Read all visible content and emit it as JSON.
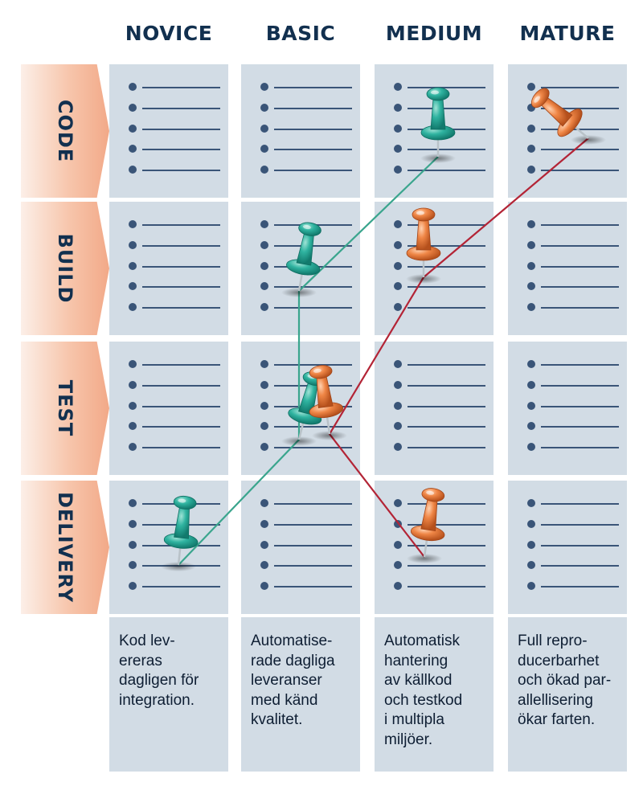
{
  "columns": [
    {
      "id": "novice",
      "label": "NOVICE",
      "description": [
        "Kod lev-",
        "ereras",
        "dagligen för",
        "integration."
      ]
    },
    {
      "id": "basic",
      "label": "BASIC",
      "description": [
        "Automatise-",
        "rade dagliga",
        "leveranser",
        "med känd",
        "kvalitet."
      ]
    },
    {
      "id": "medium",
      "label": "MEDIUM",
      "description": [
        "Automatisk",
        "hantering",
        "av källkod",
        "och testkod",
        "i multipla",
        "miljöer."
      ]
    },
    {
      "id": "mature",
      "label": "MATURE",
      "description": [
        "Full repro-",
        "ducerbarhet",
        "och ökad par-",
        "allellisering",
        "ökar farten."
      ]
    }
  ],
  "rows": [
    {
      "id": "code",
      "label": "CODE"
    },
    {
      "id": "build",
      "label": "BUILD"
    },
    {
      "id": "test",
      "label": "TEST"
    },
    {
      "id": "delivery",
      "label": "DELIVERY"
    }
  ],
  "colors": {
    "teal_pin": "#27a594",
    "teal_line": "#3aa58d",
    "orange_pin": "#ec7a3e",
    "red_line": "#b32436",
    "cell_bg": "#d2dce5",
    "heading": "#12304f"
  },
  "paths": [
    {
      "name": "teal",
      "pin_color": "teal",
      "points": [
        {
          "row": "delivery",
          "column": "novice"
        },
        {
          "row": "test",
          "column": "basic"
        },
        {
          "row": "build",
          "column": "basic"
        },
        {
          "row": "code",
          "column": "medium"
        }
      ]
    },
    {
      "name": "orange",
      "pin_color": "orange",
      "points": [
        {
          "row": "delivery",
          "column": "medium"
        },
        {
          "row": "test",
          "column": "basic"
        },
        {
          "row": "build",
          "column": "medium"
        },
        {
          "row": "code",
          "column": "mature"
        }
      ]
    }
  ]
}
